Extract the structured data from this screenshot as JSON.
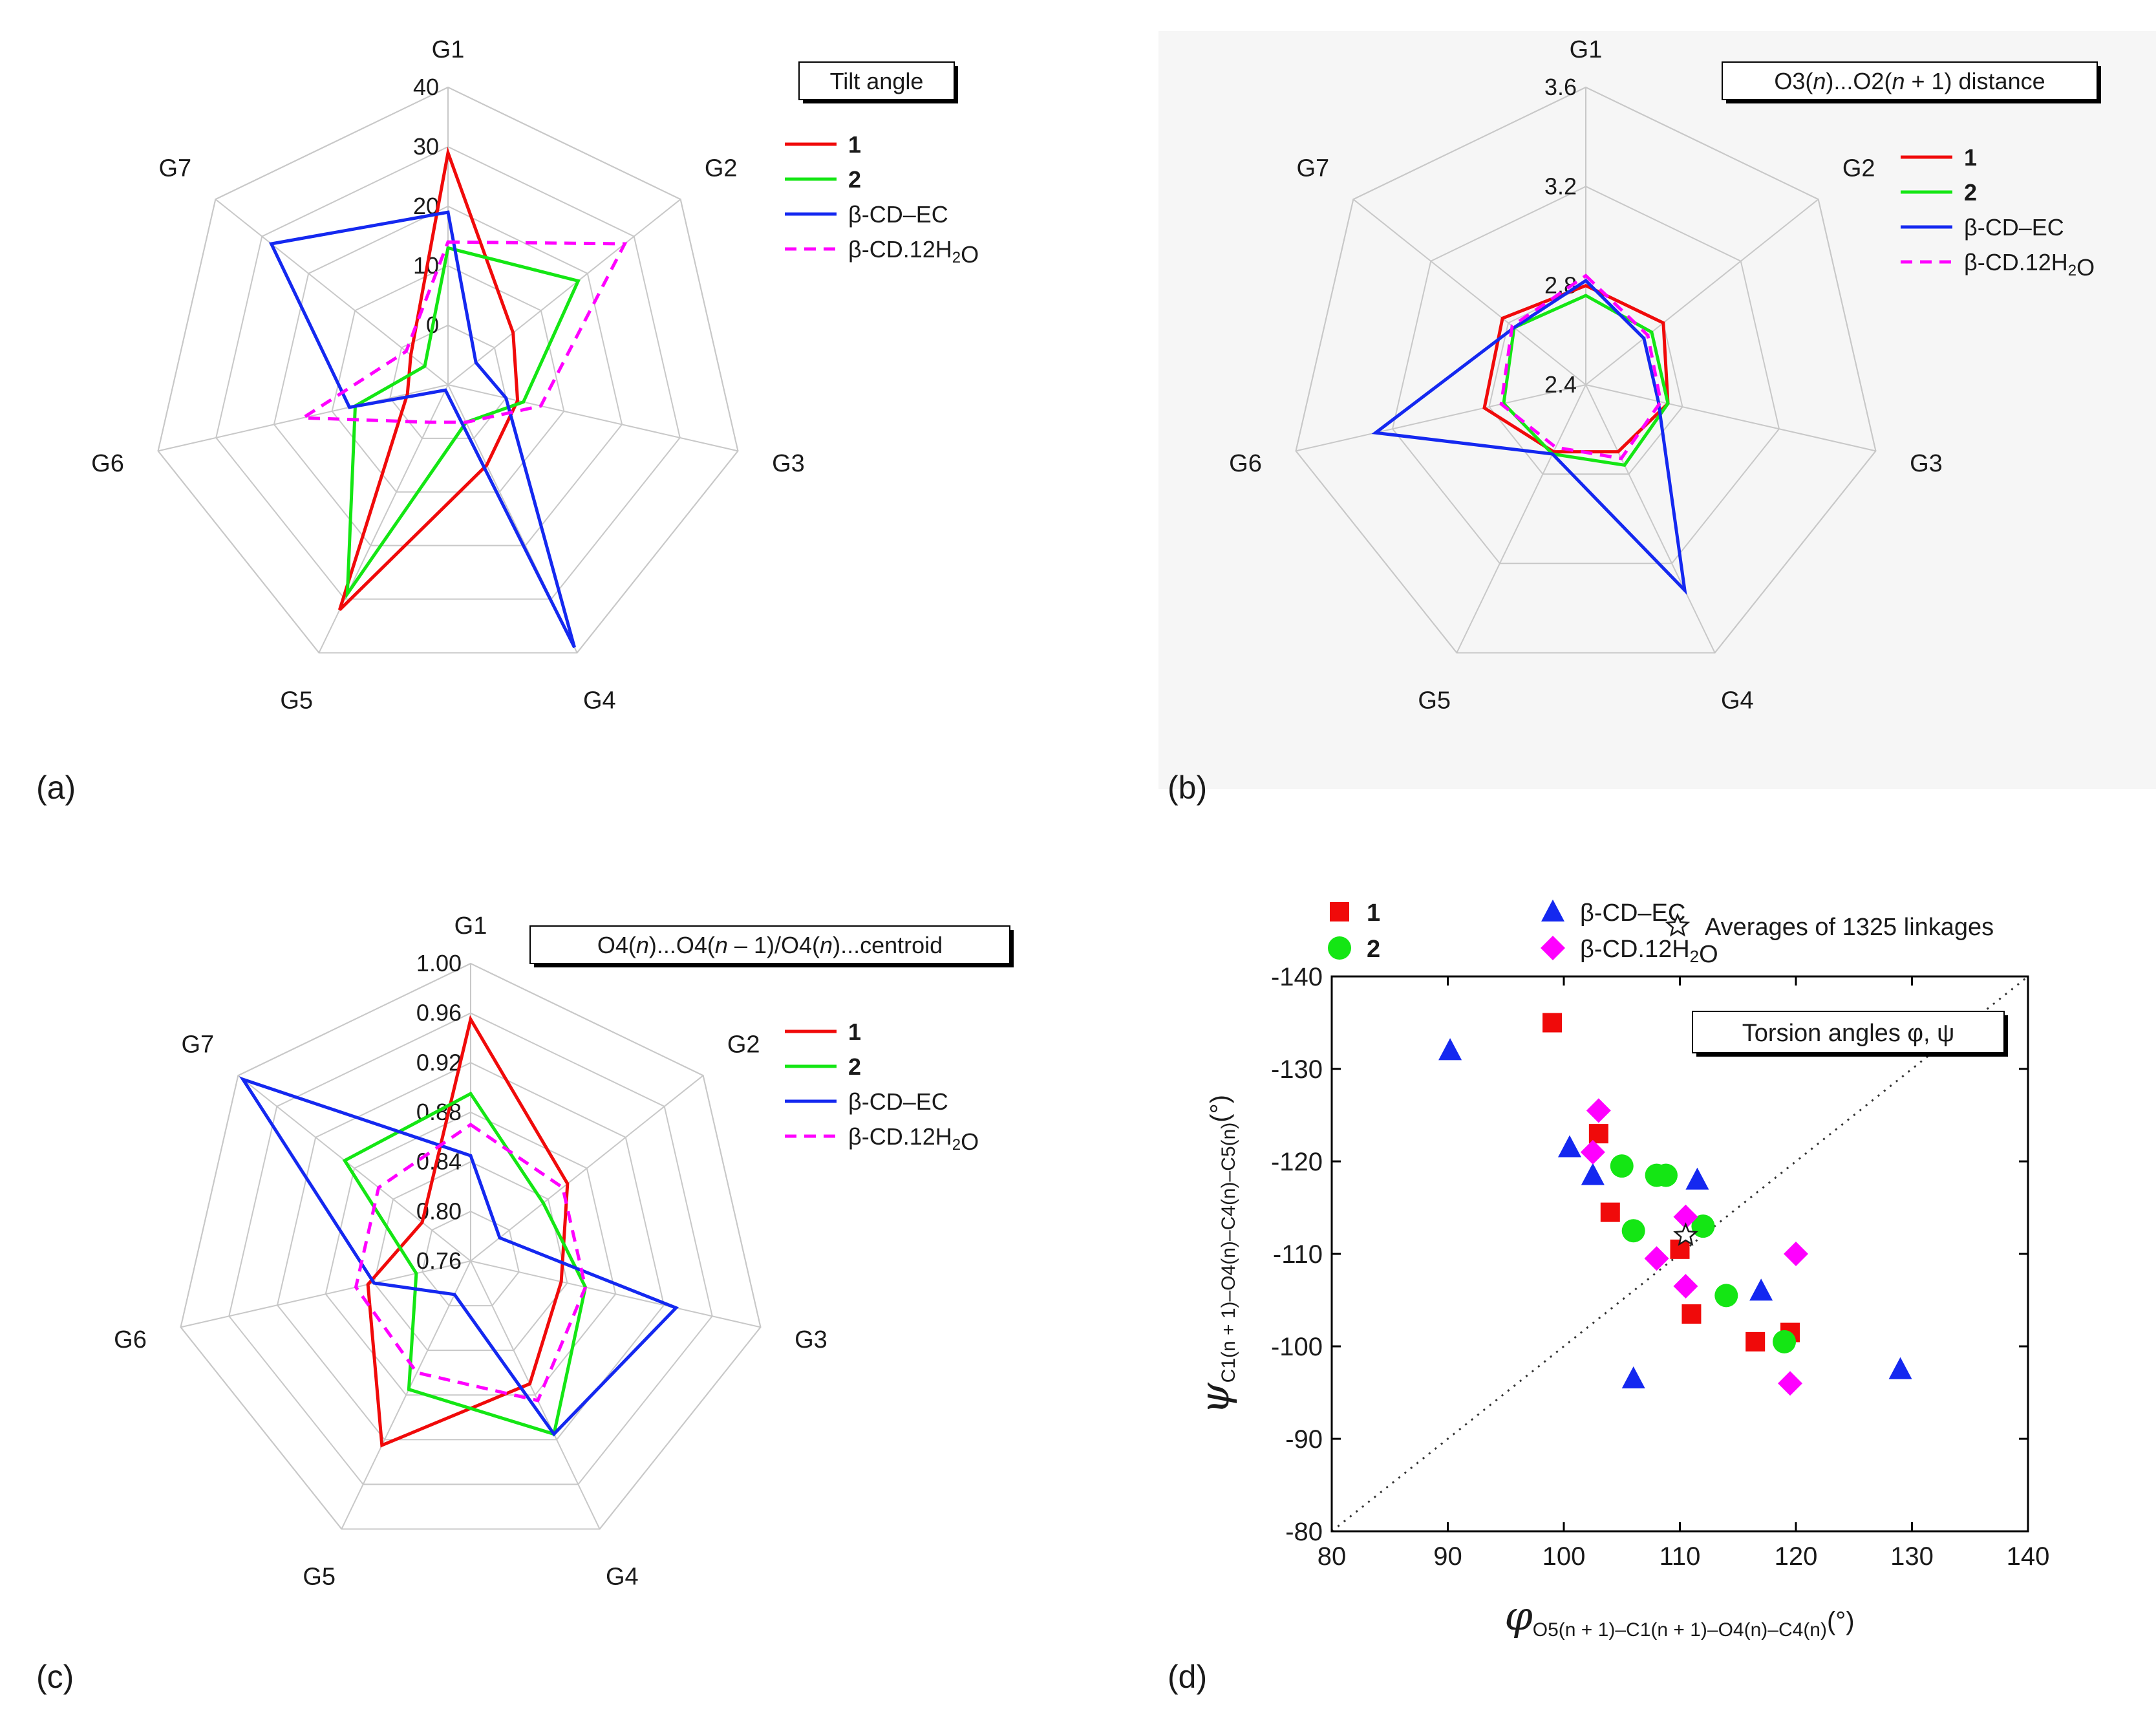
{
  "colors": {
    "red": "#f00a0a",
    "green": "#14e614",
    "blue": "#1428f0",
    "magenta": "#ff00ff",
    "grid": "#c8c8c8",
    "text": "#1a1a1a"
  },
  "chart_data": [
    {
      "type": "radar",
      "panel_label": "(a)",
      "title": "Tilt angle",
      "axes": [
        "G1",
        "G2",
        "G3",
        "G4",
        "G5",
        "G6",
        "G7"
      ],
      "range": [
        -10,
        40
      ],
      "ticks": [
        "0",
        "10",
        "20",
        "30",
        "40"
      ],
      "tick_values": [
        0,
        10,
        20,
        30,
        40
      ],
      "series": [
        {
          "name": "1",
          "bold": true,
          "color": "red",
          "dashed": false,
          "values": [
            29,
            4,
            2,
            5,
            32,
            -3,
            -2
          ]
        },
        {
          "name": "2",
          "bold": true,
          "color": "green",
          "dashed": false,
          "values": [
            13,
            18,
            3,
            -3,
            29,
            6,
            -5
          ]
        },
        {
          "name": "β-CD–EC",
          "bold": false,
          "color": "blue",
          "dashed": false,
          "values": [
            19,
            -4,
            0,
            39,
            -9,
            7,
            28
          ]
        },
        {
          "name": "β-CD.12H₂O",
          "bold": false,
          "color": "magenta",
          "dashed": true,
          "values": [
            14,
            28,
            6,
            -3,
            -3,
            15,
            -1
          ]
        }
      ]
    },
    {
      "type": "radar",
      "panel_label": "(b)",
      "title": "O3(n)...O2(n + 1) distance",
      "axes": [
        "G1",
        "G2",
        "G3",
        "G4",
        "G5",
        "G6",
        "G7"
      ],
      "range": [
        2.4,
        3.6
      ],
      "ticks": [
        "2.4",
        "2.8",
        "3.2",
        "3.6"
      ],
      "tick_values": [
        2.4,
        2.8,
        3.2,
        3.6
      ],
      "series": [
        {
          "name": "1",
          "bold": true,
          "color": "red",
          "dashed": false,
          "values": [
            2.8,
            2.8,
            2.74,
            2.7,
            2.7,
            2.82,
            2.83
          ]
        },
        {
          "name": "2",
          "bold": true,
          "color": "green",
          "dashed": false,
          "values": [
            2.76,
            2.74,
            2.74,
            2.76,
            2.71,
            2.74,
            2.77
          ]
        },
        {
          "name": "β-CD–EC",
          "bold": false,
          "color": "blue",
          "dashed": false,
          "values": [
            2.82,
            2.7,
            2.7,
            3.32,
            2.71,
            3.27,
            2.77
          ]
        },
        {
          "name": "β-CD.12H₂O",
          "bold": false,
          "color": "magenta",
          "dashed": true,
          "values": [
            2.84,
            2.72,
            2.71,
            2.73,
            2.68,
            2.75,
            2.78
          ]
        }
      ]
    },
    {
      "type": "radar",
      "panel_label": "(c)",
      "title": "O4(n)...O4(n – 1)/O4(n)...centroid",
      "axes": [
        "G1",
        "G2",
        "G3",
        "G4",
        "G5",
        "G6",
        "G7"
      ],
      "range": [
        0.76,
        1.0
      ],
      "ticks": [
        "0.76",
        "0.80",
        "0.84",
        "0.88",
        "0.92",
        "0.96",
        "1.00"
      ],
      "tick_values": [
        0.76,
        0.8,
        0.84,
        0.88,
        0.92,
        0.96,
        1.0
      ],
      "series": [
        {
          "name": "1",
          "bold": true,
          "color": "red",
          "dashed": false,
          "values": [
            0.955,
            0.86,
            0.835,
            0.87,
            0.925,
            0.845,
            0.81
          ]
        },
        {
          "name": "2",
          "bold": true,
          "color": "green",
          "dashed": false,
          "values": [
            0.895,
            0.835,
            0.855,
            0.915,
            0.875,
            0.805,
            0.89
          ]
        },
        {
          "name": "β-CD–EC",
          "bold": false,
          "color": "blue",
          "dashed": false,
          "values": [
            0.845,
            0.79,
            0.93,
            0.915,
            0.79,
            0.84,
            0.995
          ]
        },
        {
          "name": "β-CD.12H₂O",
          "bold": false,
          "color": "magenta",
          "dashed": true,
          "values": [
            0.87,
            0.855,
            0.855,
            0.885,
            0.86,
            0.855,
            0.855
          ]
        }
      ]
    },
    {
      "type": "scatter",
      "panel_label": "(d)",
      "title": "Torsion angles φ, ψ",
      "xlabel": "φ",
      "xlabel_sub": "O5(n + 1)–C1(n + 1)–O4(n)–C4(n)",
      "ylabel": "ψ",
      "ylabel_sub": "C1(n + 1)–O4(n)–C4(n)–C5(n)",
      "unit": "(°)",
      "xlim": [
        80,
        140
      ],
      "ylim": [
        -80,
        -140
      ],
      "xticks": [
        "80",
        "90",
        "100",
        "110",
        "120",
        "130",
        "140"
      ],
      "yticks": [
        "-80",
        "-90",
        "-100",
        "-110",
        "-120",
        "-130",
        "-140"
      ],
      "series": [
        {
          "name": "1",
          "bold": true,
          "marker": "square",
          "color": "red",
          "points": [
            [
              99,
              -135
            ],
            [
              103,
              -123
            ],
            [
              104,
              -114.5
            ],
            [
              110,
              -110.5
            ],
            [
              111,
              -103.5
            ],
            [
              116.5,
              -100.5
            ],
            [
              119.5,
              -101.5
            ]
          ]
        },
        {
          "name": "2",
          "bold": true,
          "marker": "circle",
          "color": "green",
          "points": [
            [
              105,
              -119.5
            ],
            [
              106,
              -112.5
            ],
            [
              108,
              -118.5
            ],
            [
              108.8,
              -118.5
            ],
            [
              112,
              -113
            ],
            [
              114,
              -105.5
            ],
            [
              119,
              -100.5
            ]
          ]
        },
        {
          "name": "β-CD–EC",
          "bold": false,
          "marker": "triangle",
          "color": "blue",
          "points": [
            [
              90.2,
              -132
            ],
            [
              100.5,
              -121.5
            ],
            [
              102.5,
              -118.5
            ],
            [
              111.5,
              -118
            ],
            [
              106,
              -96.5
            ],
            [
              117,
              -106
            ],
            [
              129,
              -97.5
            ]
          ]
        },
        {
          "name": "β-CD.12H₂O",
          "bold": false,
          "marker": "diamond",
          "color": "magenta",
          "points": [
            [
              103,
              -125.5
            ],
            [
              102.5,
              -121
            ],
            [
              108,
              -109.5
            ],
            [
              110.5,
              -114
            ],
            [
              110.5,
              -106.5
            ],
            [
              119.5,
              -96
            ],
            [
              120,
              -110
            ]
          ]
        },
        {
          "name": "Averages of 1325 linkages",
          "bold": false,
          "marker": "star",
          "color": "text",
          "points": [
            [
              110.5,
              -112
            ]
          ]
        }
      ]
    }
  ]
}
